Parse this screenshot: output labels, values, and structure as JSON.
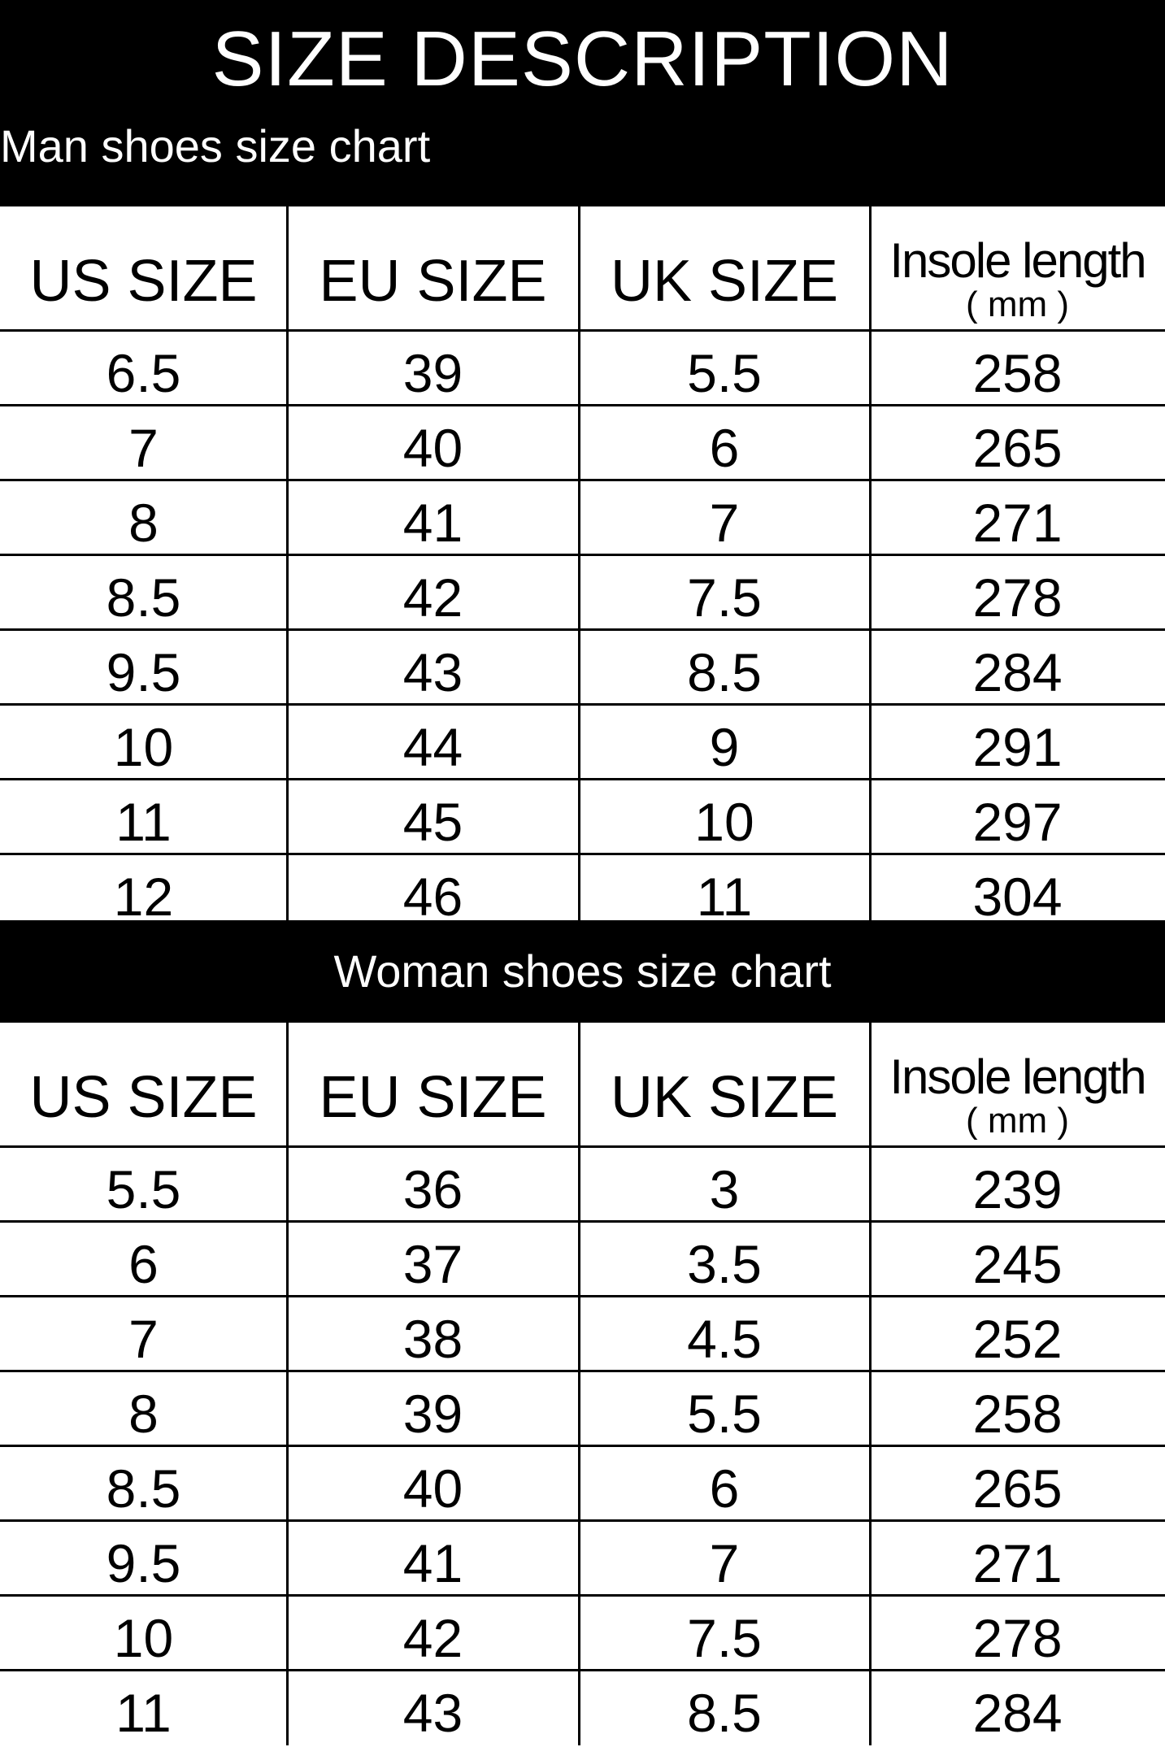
{
  "header": {
    "title": "SIZE DESCRIPTION"
  },
  "tables": [
    {
      "caption": "Man shoes size chart",
      "columns": [
        "US SIZE",
        "EU SIZE",
        "UK SIZE",
        "Insole length"
      ],
      "unit": "( mm )",
      "rows": [
        [
          "6.5",
          "39",
          "5.5",
          "258"
        ],
        [
          "7",
          "40",
          "6",
          "265"
        ],
        [
          "8",
          "41",
          "7",
          "271"
        ],
        [
          "8.5",
          "42",
          "7.5",
          "278"
        ],
        [
          "9.5",
          "43",
          "8.5",
          "284"
        ],
        [
          "10",
          "44",
          "9",
          "291"
        ],
        [
          "11",
          "45",
          "10",
          "297"
        ],
        [
          "12",
          "46",
          "11",
          "304"
        ]
      ]
    },
    {
      "caption": "Woman shoes size chart",
      "columns": [
        "US SIZE",
        "EU SIZE",
        "UK SIZE",
        "Insole length"
      ],
      "unit": "( mm )",
      "rows": [
        [
          "5.5",
          "36",
          "3",
          "239"
        ],
        [
          "6",
          "37",
          "3.5",
          "245"
        ],
        [
          "7",
          "38",
          "4.5",
          "252"
        ],
        [
          "8",
          "39",
          "5.5",
          "258"
        ],
        [
          "8.5",
          "40",
          "6",
          "265"
        ],
        [
          "9.5",
          "41",
          "7",
          "271"
        ],
        [
          "10",
          "42",
          "7.5",
          "278"
        ],
        [
          "11",
          "43",
          "8.5",
          "284"
        ]
      ]
    }
  ]
}
